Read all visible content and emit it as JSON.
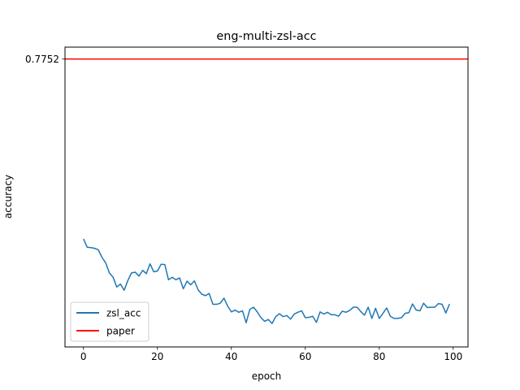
{
  "chart_data": {
    "type": "line",
    "title": "eng-multi-zsl-acc",
    "xlabel": "epoch",
    "ylabel": "accuracy",
    "xlim": [
      -5,
      104
    ],
    "ylim": [
      0.6955,
      0.7785
    ],
    "xticks": [
      0,
      20,
      40,
      60,
      80,
      100
    ],
    "xtick_labels": [
      "0",
      "20",
      "40",
      "60",
      "80",
      "100"
    ],
    "yticks": [
      0.7752
    ],
    "ytick_labels": [
      "0.7752"
    ],
    "grid": false,
    "legend": {
      "placement": "lower-left",
      "entries": [
        "zsl_acc",
        "paper"
      ]
    },
    "series": [
      {
        "name": "zsl_acc",
        "color": "#1f77b4",
        "x": [
          0,
          1,
          2,
          3,
          4,
          5,
          6,
          7,
          8,
          9,
          10,
          11,
          12,
          13,
          14,
          15,
          16,
          17,
          18,
          19,
          20,
          21,
          22,
          23,
          24,
          25,
          26,
          27,
          28,
          29,
          30,
          31,
          32,
          33,
          34,
          35,
          36,
          37,
          38,
          39,
          40,
          41,
          42,
          43,
          44,
          45,
          46,
          47,
          48,
          49,
          50,
          51,
          52,
          53,
          54,
          55,
          56,
          57,
          58,
          59,
          60,
          61,
          62,
          63,
          64,
          65,
          66,
          67,
          68,
          69,
          70,
          71,
          72,
          73,
          74,
          75,
          76,
          77,
          78,
          79,
          80,
          81,
          82,
          83,
          84,
          85,
          86,
          87,
          88,
          89,
          90,
          91,
          92,
          93,
          94,
          95,
          96,
          97,
          98,
          99
        ],
        "y": [
          0.7254,
          0.7231,
          0.723,
          0.7228,
          0.7224,
          0.7203,
          0.7188,
          0.716,
          0.7148,
          0.7121,
          0.7129,
          0.7112,
          0.7139,
          0.716,
          0.7162,
          0.7151,
          0.7167,
          0.7158,
          0.7185,
          0.7163,
          0.7165,
          0.7184,
          0.7183,
          0.7141,
          0.7148,
          0.7141,
          0.7146,
          0.7116,
          0.7137,
          0.7127,
          0.7138,
          0.7113,
          0.7101,
          0.7097,
          0.7103,
          0.7073,
          0.7073,
          0.7076,
          0.709,
          0.7068,
          0.7052,
          0.7057,
          0.7051,
          0.7055,
          0.7022,
          0.7059,
          0.7065,
          0.7052,
          0.7036,
          0.7026,
          0.7031,
          0.702,
          0.7039,
          0.7047,
          0.7039,
          0.7042,
          0.7032,
          0.7046,
          0.7051,
          0.7055,
          0.7036,
          0.7037,
          0.704,
          0.7023,
          0.7052,
          0.7046,
          0.7051,
          0.7044,
          0.7044,
          0.704,
          0.7054,
          0.7051,
          0.7056,
          0.7065,
          0.7065,
          0.7053,
          0.7043,
          0.7065,
          0.7034,
          0.7062,
          0.7034,
          0.7048,
          0.7063,
          0.704,
          0.7034,
          0.7034,
          0.7036,
          0.7048,
          0.705,
          0.7074,
          0.7057,
          0.7055,
          0.7076,
          0.7064,
          0.7065,
          0.7065,
          0.7075,
          0.7073,
          0.7049,
          0.7074
        ]
      },
      {
        "name": "paper",
        "color": "#ff0000",
        "hline": 0.7752
      }
    ]
  }
}
